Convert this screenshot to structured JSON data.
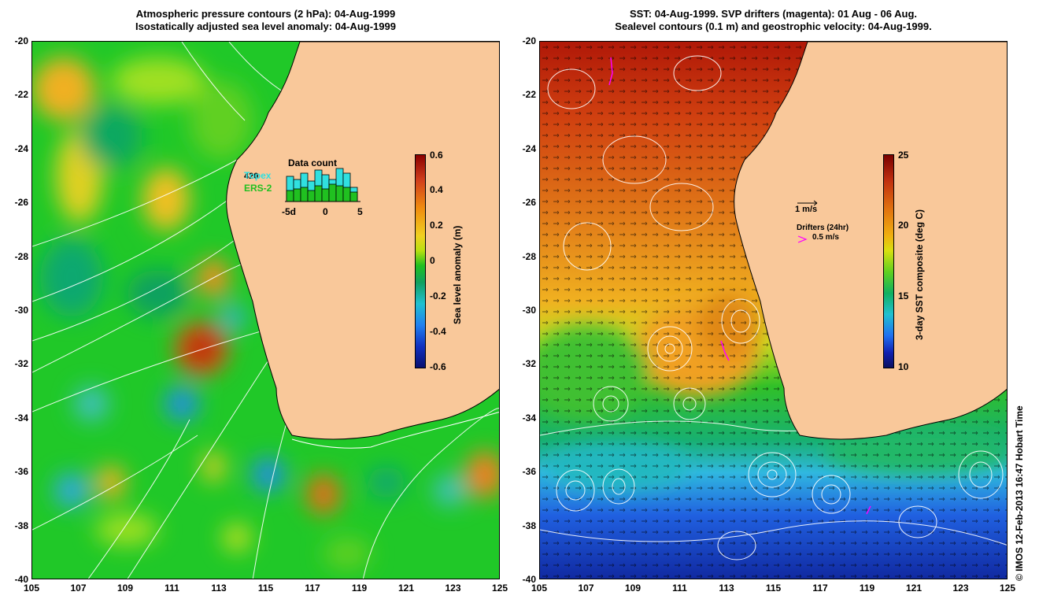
{
  "left_panel": {
    "title_line1": "Atmospheric pressure contours (2 hPa): 04-Aug-1999",
    "title_line2": "Isostatically adjusted sea level anomaly: 04-Aug-1999",
    "colorbar": {
      "title": "Sea level anomaly (m)",
      "ticks": [
        "0.6",
        "0.4",
        "0.2",
        "0",
        "-0.2",
        "-0.4",
        "-0.6"
      ]
    },
    "inset": {
      "count": "420",
      "topex_label": "Topex",
      "ers2_label": "ERS-2",
      "title": "Data count",
      "xticks": [
        "-5d",
        "0",
        "5"
      ],
      "topex_color": "#30e0e0",
      "ers2_color": "#20c020"
    }
  },
  "right_panel": {
    "title_line1": "SST: 04-Aug-1999. SVP drifters (magenta): 01 Aug - 06 Aug.",
    "title_line2": "Sealevel contours (0.1 m) and geostrophic velocity: 04-Aug-1999.",
    "colorbar": {
      "title": "3-day SST composite (deg C)",
      "ticks": [
        "25",
        "20",
        "15",
        "10"
      ]
    },
    "velocity_scale_label": "1 m/s",
    "drifter_legend_title": "Drifters (24hr)",
    "drifter_legend_label": "0.5 m/s",
    "drifter_color": "#ff00ff"
  },
  "axes": {
    "y_ticks": [
      "-20",
      "-22",
      "-24",
      "-26",
      "-28",
      "-30",
      "-32",
      "-34",
      "-36",
      "-38",
      "-40"
    ],
    "x_ticks": [
      "105",
      "107",
      "109",
      "111",
      "113",
      "115",
      "117",
      "119",
      "121",
      "123",
      "125"
    ]
  },
  "credit": "© IMOS 12-Feb-2013 16:47 Hobart Time",
  "colors": {
    "land": "#f9c89a",
    "coast": "#000000",
    "contour": "#ffffff"
  }
}
